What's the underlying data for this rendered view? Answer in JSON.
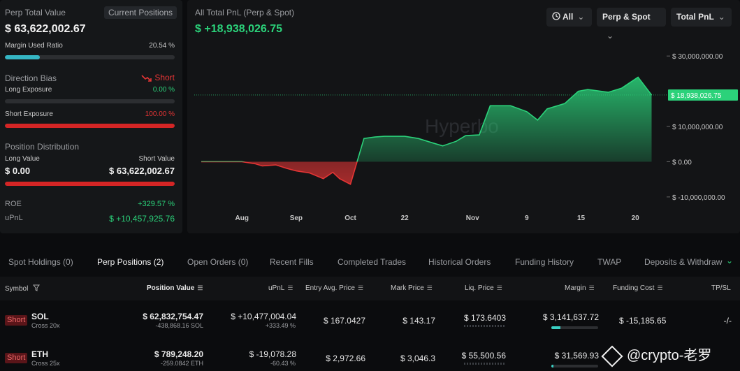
{
  "summary": {
    "perp_total_label": "Perp Total Value",
    "current_positions_label": "Current Positions",
    "perp_total_value": "$ 63,622,002.67",
    "margin_used_label": "Margin Used Ratio",
    "margin_used_value": "20.54 %",
    "margin_used_fraction": 0.2054,
    "direction_bias_label": "Direction Bias",
    "direction_bias_value": "Short",
    "long_exposure_label": "Long Exposure",
    "long_exposure_value": "0.00 %",
    "long_exposure_fraction": 0.0,
    "short_exposure_label": "Short Exposure",
    "short_exposure_value": "100.00 %",
    "short_exposure_fraction": 1.0,
    "position_dist_label": "Position Distribution",
    "long_value_label": "Long Value",
    "short_value_label": "Short Value",
    "long_value": "$ 0.00",
    "short_value": "$ 63,622,002.67",
    "short_dist_fraction": 1.0,
    "roe_label": "ROE",
    "roe_value": "+329.57 %",
    "upnl_label": "uPnL",
    "upnl_value": "$ +10,457,925.76"
  },
  "chart_panel": {
    "title": "All Total PnL (Perp & Spot)",
    "value": "$ +18,938,026.75",
    "filters": {
      "range": "All",
      "scope": "Perp & Spot",
      "metric": "Total PnL"
    },
    "watermark": "Hyperbo",
    "current_label": "$ 18,938,026.75"
  },
  "chart_data": {
    "type": "area",
    "title": "All Total PnL (Perp & Spot)",
    "yticks": [
      {
        "v": 30000000,
        "label": "$ 30,000,000.00"
      },
      {
        "v": 10000000,
        "label": "$ 10,000,000.00"
      },
      {
        "v": 0,
        "label": "$ 0.00"
      },
      {
        "v": -10000000,
        "label": "$ -10,000,000.00"
      }
    ],
    "xticks": [
      {
        "t": 3,
        "label": "Aug"
      },
      {
        "t": 7,
        "label": "Sep"
      },
      {
        "t": 11,
        "label": "Oct"
      },
      {
        "t": 15,
        "label": "22"
      },
      {
        "t": 20,
        "label": "Nov"
      },
      {
        "t": 24,
        "label": "9"
      },
      {
        "t": 28,
        "label": "15"
      },
      {
        "t": 32,
        "label": "20"
      }
    ],
    "ylim": [
      -13000000,
      34000000
    ],
    "xlim": [
      0,
      34
    ],
    "points": [
      [
        0,
        0
      ],
      [
        1.5,
        0
      ],
      [
        3,
        0
      ],
      [
        4,
        -600000
      ],
      [
        4.5,
        -1200000
      ],
      [
        5.5,
        -900000
      ],
      [
        6.3,
        -1900000
      ],
      [
        7,
        -2600000
      ],
      [
        8,
        -3200000
      ],
      [
        9,
        -4800000
      ],
      [
        9.7,
        -3000000
      ],
      [
        10.2,
        -4800000
      ],
      [
        11,
        -6400000
      ],
      [
        11.5,
        100000
      ],
      [
        12,
        6600000
      ],
      [
        12.8,
        7000000
      ],
      [
        13.5,
        7200000
      ],
      [
        15,
        7200000
      ],
      [
        16,
        6600000
      ],
      [
        17,
        5400000
      ],
      [
        17.8,
        4500000
      ],
      [
        18.8,
        5800000
      ],
      [
        19.5,
        7400000
      ],
      [
        20.5,
        7600000
      ],
      [
        21.3,
        15900000
      ],
      [
        22.8,
        15900000
      ],
      [
        24,
        14200000
      ],
      [
        24.8,
        11800000
      ],
      [
        25.5,
        15000000
      ],
      [
        26.8,
        16500000
      ],
      [
        27.8,
        20000000
      ],
      [
        28.5,
        20500000
      ],
      [
        30,
        19700000
      ],
      [
        31,
        20900000
      ],
      [
        32.2,
        24000000
      ],
      [
        33.2,
        18938026.75
      ]
    ],
    "ref_value": 18938026.75,
    "colors": {
      "positive": "#2bd27a",
      "negative": "#e53535"
    }
  },
  "tabs": [
    {
      "label": "Spot Holdings (0)",
      "active": false
    },
    {
      "label": "Perp Positions (2)",
      "active": true
    },
    {
      "label": "Open Orders (0)",
      "active": false
    },
    {
      "label": "Recent Fills",
      "active": false
    },
    {
      "label": "Completed Trades",
      "active": false
    },
    {
      "label": "Historical Orders",
      "active": false
    },
    {
      "label": "Funding History",
      "active": false
    },
    {
      "label": "TWAP",
      "active": false
    },
    {
      "label": "Deposits & Withdraw",
      "active": false
    }
  ],
  "table": {
    "headers": {
      "symbol": "Symbol",
      "position_value": "Position Value",
      "upnl": "uPnL",
      "entry": "Entry Avg. Price",
      "mark": "Mark Price",
      "liq": "Liq. Price",
      "margin": "Margin",
      "funding": "Funding Cost",
      "tpsl": "TP/SL"
    },
    "rows": [
      {
        "side": "Short",
        "symbol": "SOL",
        "margin_mode": "Cross 20x",
        "position_value": "$ 62,832,754.47",
        "size": "-438,868.16 SOL",
        "upnl": "$ +10,477,004.04",
        "upnl_pct": "+333.49 %",
        "upnl_positive": true,
        "entry": "$ 167.0427",
        "mark": "$ 143.17",
        "liq": "$ 173.6403",
        "margin": "$ 3,141,637.72",
        "margin_fraction": 0.2,
        "funding": "$ -15,185.65",
        "tpsl": "-/-"
      },
      {
        "side": "Short",
        "symbol": "ETH",
        "margin_mode": "Cross 25x",
        "position_value": "$ 789,248.20",
        "size": "-259.0842 ETH",
        "upnl": "$ -19,078.28",
        "upnl_pct": "-60.43 %",
        "upnl_positive": false,
        "entry": "$ 2,972.66",
        "mark": "$ 3,046.3",
        "liq": "$ 55,500.56",
        "margin": "$ 31,569.93",
        "margin_fraction": 0.05,
        "funding": "",
        "tpsl": ""
      }
    ]
  },
  "watermark_text": "@crypto-老罗"
}
